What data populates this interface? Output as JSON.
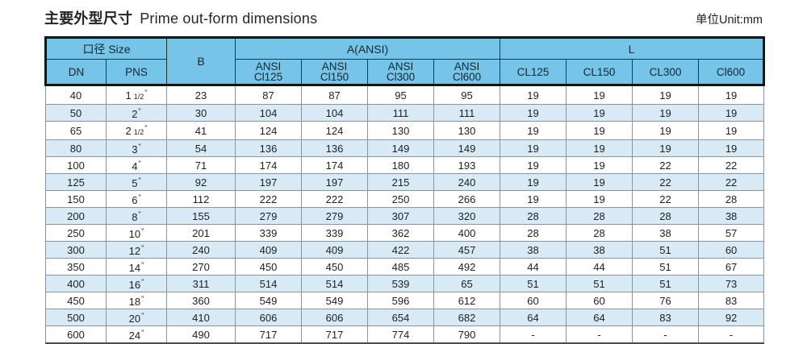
{
  "page": {
    "title_zh": "主要外型尺寸",
    "title_en": "Prime out-form dimensions",
    "unit_label": "单位Unit:mm"
  },
  "colors": {
    "header_bg": "#76C4E8",
    "row_alt_bg": "#D8EAF6",
    "grid_line": "#8D939A",
    "frame_dark": "#141414"
  },
  "table": {
    "header": {
      "size_group": "口径 Size",
      "dn": "DN",
      "pns": "PNS",
      "b_label": "B",
      "a_group": "A(ANSI)",
      "a_cols": [
        {
          "l1": "ANSI",
          "l2": "Cl125"
        },
        {
          "l1": "ANSI",
          "l2": "Cl150"
        },
        {
          "l1": "ANSI",
          "l2": "Cl300"
        },
        {
          "l1": "ANSI",
          "l2": "Cl600"
        }
      ],
      "l_group": "L",
      "l_cols": [
        "CL125",
        "CL150",
        "CL300",
        "Cl600"
      ]
    },
    "inch_mark": "\"",
    "rows": [
      {
        "dn": "40",
        "pns_main": "1",
        "pns_frac": "1/2",
        "b": "23",
        "a": [
          "87",
          "87",
          "95",
          "95"
        ],
        "l": [
          "19",
          "19",
          "19",
          "19"
        ]
      },
      {
        "dn": "50",
        "pns_main": "2",
        "pns_frac": "",
        "b": "30",
        "a": [
          "104",
          "104",
          "111",
          "111"
        ],
        "l": [
          "19",
          "19",
          "19",
          "19"
        ]
      },
      {
        "dn": "65",
        "pns_main": "2",
        "pns_frac": "1/2",
        "b": "41",
        "a": [
          "124",
          "124",
          "130",
          "130"
        ],
        "l": [
          "19",
          "19",
          "19",
          "19"
        ]
      },
      {
        "dn": "80",
        "pns_main": "3",
        "pns_frac": "",
        "b": "54",
        "a": [
          "136",
          "136",
          "149",
          "149"
        ],
        "l": [
          "19",
          "19",
          "19",
          "19"
        ]
      },
      {
        "dn": "100",
        "pns_main": "4",
        "pns_frac": "",
        "b": "71",
        "a": [
          "174",
          "174",
          "180",
          "193"
        ],
        "l": [
          "19",
          "19",
          "22",
          "22"
        ]
      },
      {
        "dn": "125",
        "pns_main": "5",
        "pns_frac": "",
        "b": "92",
        "a": [
          "197",
          "197",
          "215",
          "240"
        ],
        "l": [
          "19",
          "19",
          "22",
          "22"
        ]
      },
      {
        "dn": "150",
        "pns_main": "6",
        "pns_frac": "",
        "b": "112",
        "a": [
          "222",
          "222",
          "250",
          "266"
        ],
        "l": [
          "19",
          "19",
          "22",
          "28"
        ]
      },
      {
        "dn": "200",
        "pns_main": "8",
        "pns_frac": "",
        "b": "155",
        "a": [
          "279",
          "279",
          "307",
          "320"
        ],
        "l": [
          "28",
          "28",
          "28",
          "38"
        ]
      },
      {
        "dn": "250",
        "pns_main": "10",
        "pns_frac": "",
        "b": "201",
        "a": [
          "339",
          "339",
          "362",
          "400"
        ],
        "l": [
          "28",
          "28",
          "38",
          "57"
        ]
      },
      {
        "dn": "300",
        "pns_main": "12",
        "pns_frac": "",
        "b": "240",
        "a": [
          "409",
          "409",
          "422",
          "457"
        ],
        "l": [
          "38",
          "38",
          "51",
          "60"
        ]
      },
      {
        "dn": "350",
        "pns_main": "14",
        "pns_frac": "",
        "b": "270",
        "a": [
          "450",
          "450",
          "485",
          "492"
        ],
        "l": [
          "44",
          "44",
          "51",
          "67"
        ]
      },
      {
        "dn": "400",
        "pns_main": "16",
        "pns_frac": "",
        "b": "311",
        "a": [
          "514",
          "514",
          "539",
          "65"
        ],
        "l": [
          "51",
          "51",
          "51",
          "73"
        ]
      },
      {
        "dn": "450",
        "pns_main": "18",
        "pns_frac": "",
        "b": "360",
        "a": [
          "549",
          "549",
          "596",
          "612"
        ],
        "l": [
          "60",
          "60",
          "76",
          "83"
        ]
      },
      {
        "dn": "500",
        "pns_main": "20",
        "pns_frac": "",
        "b": "410",
        "a": [
          "606",
          "606",
          "654",
          "682"
        ],
        "l": [
          "64",
          "64",
          "83",
          "92"
        ]
      },
      {
        "dn": "600",
        "pns_main": "24",
        "pns_frac": "",
        "b": "490",
        "a": [
          "717",
          "717",
          "774",
          "790"
        ],
        "l": [
          "-",
          "-",
          "-",
          "-"
        ]
      }
    ]
  }
}
